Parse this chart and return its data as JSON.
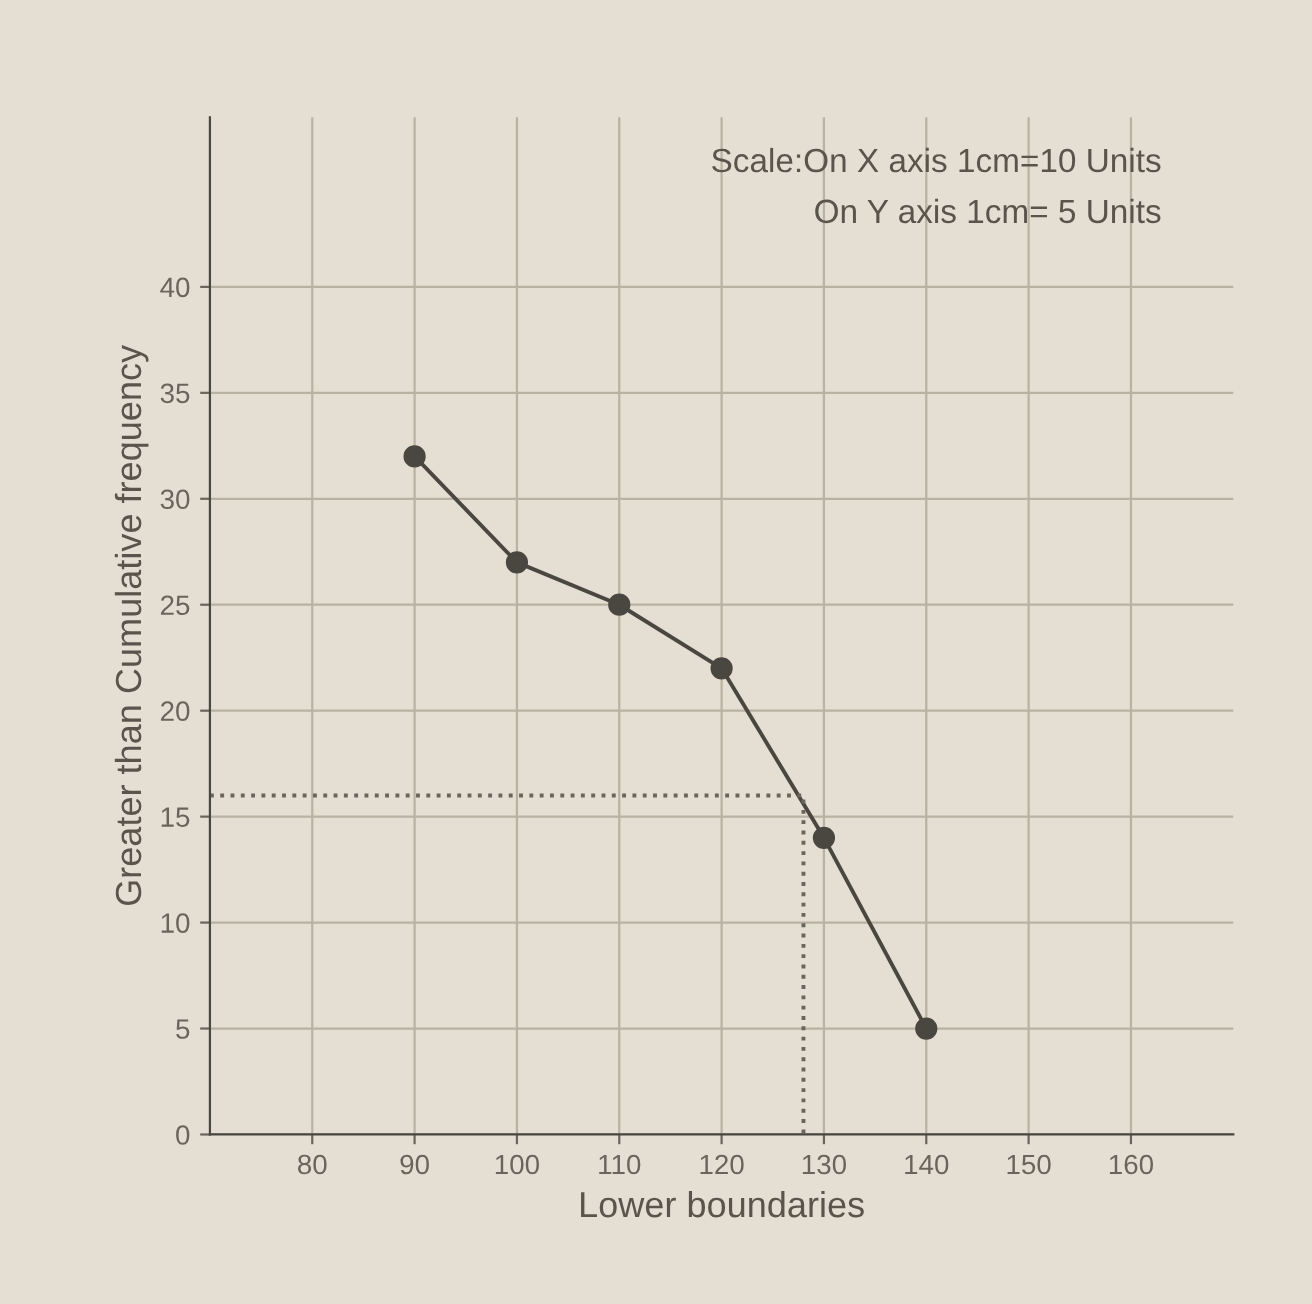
{
  "chart_data": {
    "type": "line",
    "xlabel": "Lower boundaries",
    "ylabel": "Greater than Cumulative frequency",
    "annotations": [
      "Scale:On X axis 1cm=10 Units",
      "On Y axis 1cm= 5 Units"
    ],
    "series": [
      {
        "x": [
          90,
          100,
          110,
          120,
          130,
          140
        ],
        "values": [
          32,
          27,
          25,
          22,
          14,
          5
        ],
        "color": "#4a4640",
        "marker": "circle",
        "line_style": "solid"
      },
      {
        "x": [
          70,
          128,
          128
        ],
        "values": [
          16,
          16,
          0
        ],
        "color": "#6a655c",
        "marker": "none",
        "line_style": "dotted"
      }
    ],
    "xlim": [
      70,
      170
    ],
    "xticks": [
      80,
      90,
      100,
      110,
      120,
      130,
      140,
      150,
      160
    ],
    "ylim": [
      0,
      48
    ],
    "yticks": [
      0,
      5,
      10,
      15,
      20,
      25,
      30,
      35,
      40
    ],
    "grid": true,
    "legend": false
  }
}
